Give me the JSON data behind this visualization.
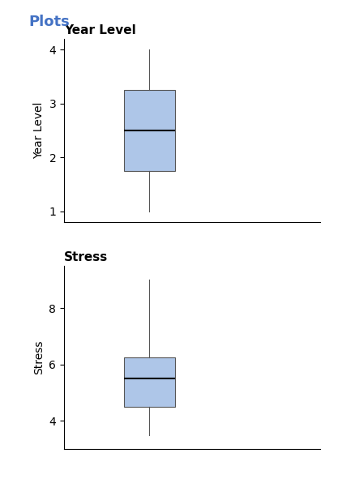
{
  "title": "Plots",
  "title_color": "#4472C4",
  "plot1_label": "Year Level",
  "plot1_ylabel": "Year Level",
  "plot1_box": {
    "whislo": 1.0,
    "q1": 1.75,
    "med": 2.5,
    "q3": 3.25,
    "whishi": 4.0
  },
  "plot1_ylim": [
    0.8,
    4.2
  ],
  "plot1_yticks": [
    1,
    2,
    3,
    4
  ],
  "plot2_label": "Stress",
  "plot2_ylabel": "Stress",
  "plot2_box": {
    "whislo": 3.5,
    "q1": 4.5,
    "med": 5.5,
    "q3": 6.25,
    "whishi": 9.0
  },
  "plot2_ylim": [
    3.0,
    9.5
  ],
  "plot2_yticks": [
    4,
    6,
    8
  ],
  "box_facecolor": "#AEC6E8",
  "box_edgecolor": "#555555",
  "median_color": "#000000",
  "whisker_color": "#555555",
  "cap_color": "#555555",
  "background_color": "#ffffff",
  "font_size": 10,
  "title_font_size": 13,
  "label_font_size": 11
}
